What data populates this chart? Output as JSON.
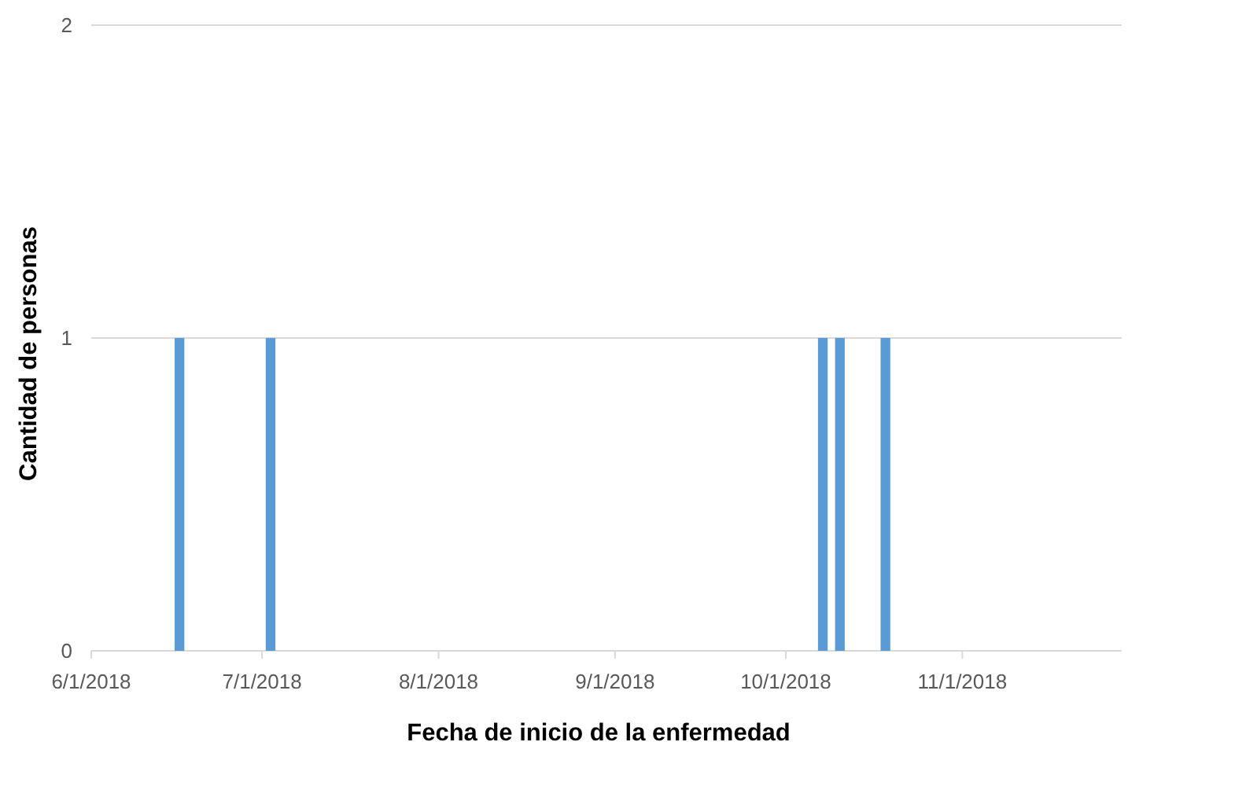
{
  "chart_data": {
    "type": "bar",
    "xlabel": "Fecha de inicio de la enfermedad",
    "ylabel": "Cantidad de personas",
    "x": [
      "2018-06-16",
      "2018-07-02",
      "2018-10-07",
      "2018-10-10",
      "2018-10-18"
    ],
    "values": [
      1,
      1,
      1,
      1,
      1
    ],
    "color": "#5b9bd5",
    "xlim": [
      "2018-06-01",
      "2018-11-29"
    ],
    "xticks": [
      {
        "value": "2018-06-01",
        "label": "6/1/2018"
      },
      {
        "value": "2018-07-01",
        "label": "7/1/2018"
      },
      {
        "value": "2018-08-01",
        "label": "8/1/2018"
      },
      {
        "value": "2018-09-01",
        "label": "9/1/2018"
      },
      {
        "value": "2018-10-01",
        "label": "10/1/2018"
      },
      {
        "value": "2018-11-01",
        "label": "11/1/2018"
      }
    ],
    "ylim": [
      0,
      2
    ],
    "yticks": [
      0,
      1,
      2
    ],
    "grid": "y"
  }
}
